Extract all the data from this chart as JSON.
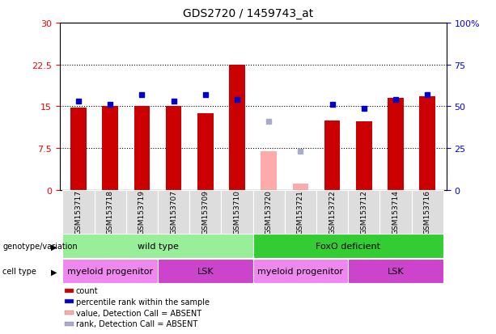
{
  "title": "GDS2720 / 1459743_at",
  "samples": [
    "GSM153717",
    "GSM153718",
    "GSM153719",
    "GSM153707",
    "GSM153709",
    "GSM153710",
    "GSM153720",
    "GSM153721",
    "GSM153722",
    "GSM153712",
    "GSM153714",
    "GSM153716"
  ],
  "count_values": [
    14.8,
    15.0,
    15.0,
    15.0,
    13.7,
    22.5,
    null,
    null,
    12.5,
    12.3,
    16.5,
    16.8
  ],
  "absent_count_values": [
    null,
    null,
    null,
    null,
    null,
    null,
    7.0,
    1.2,
    null,
    null,
    null,
    null
  ],
  "percentile_values": [
    53,
    51,
    57,
    53,
    57,
    54,
    null,
    null,
    51,
    49,
    54,
    57
  ],
  "absent_percentile_values": [
    null,
    null,
    null,
    null,
    null,
    null,
    41,
    23,
    null,
    null,
    null,
    null
  ],
  "count_color": "#cc0000",
  "absent_count_color": "#ffaaaa",
  "percentile_color": "#0000cc",
  "absent_percentile_color": "#aaaacc",
  "ylim_left": [
    0,
    30
  ],
  "ylim_right": [
    0,
    100
  ],
  "yticks_left": [
    0,
    7.5,
    15,
    22.5,
    30
  ],
  "ytick_labels_left": [
    "0",
    "7.5",
    "15",
    "22.5",
    "30"
  ],
  "yticks_right": [
    0,
    25,
    50,
    75,
    100
  ],
  "ytick_labels_right": [
    "0",
    "25",
    "50",
    "75",
    "100%"
  ],
  "hlines": [
    7.5,
    15.0,
    22.5
  ],
  "genotype_groups": [
    {
      "label": "wild type",
      "start": 0,
      "end": 6,
      "color": "#99ee99"
    },
    {
      "label": "FoxO deficient",
      "start": 6,
      "end": 12,
      "color": "#33cc33"
    }
  ],
  "cell_type_groups": [
    {
      "label": "myeloid progenitor",
      "start": 0,
      "end": 3,
      "color": "#ee88ee"
    },
    {
      "label": "LSK",
      "start": 3,
      "end": 6,
      "color": "#cc44cc"
    },
    {
      "label": "myeloid progenitor",
      "start": 6,
      "end": 9,
      "color": "#ee88ee"
    },
    {
      "label": "LSK",
      "start": 9,
      "end": 12,
      "color": "#cc44cc"
    }
  ],
  "legend_items": [
    {
      "label": "count",
      "color": "#cc0000"
    },
    {
      "label": "percentile rank within the sample",
      "color": "#0000cc"
    },
    {
      "label": "value, Detection Call = ABSENT",
      "color": "#ffaaaa"
    },
    {
      "label": "rank, Detection Call = ABSENT",
      "color": "#aaaacc"
    }
  ],
  "bar_width": 0.5,
  "background_color": "#ffffff"
}
